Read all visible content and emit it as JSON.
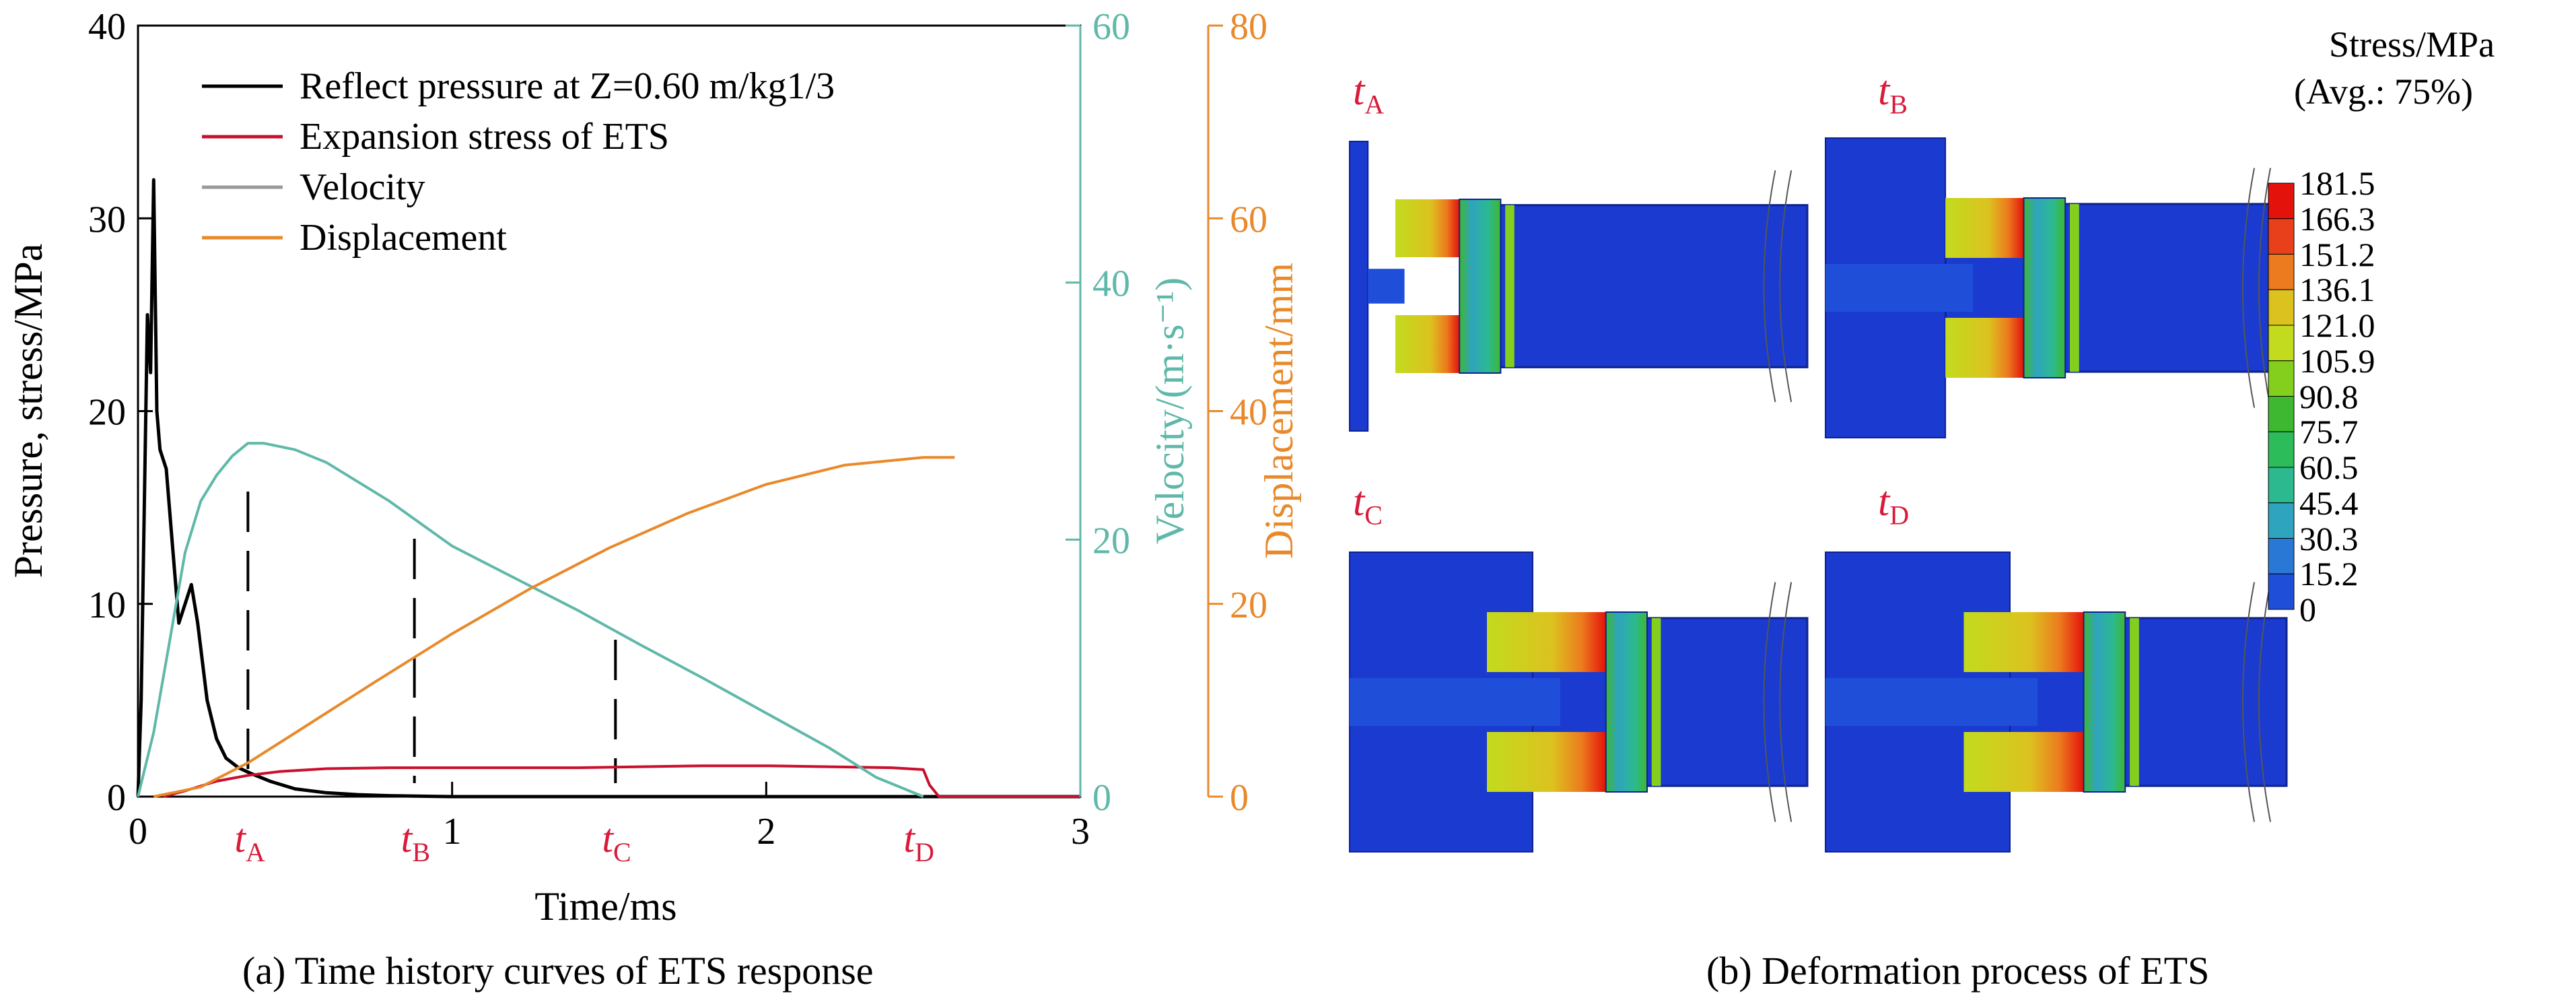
{
  "captions": {
    "a": "(a) Time history curves of ETS response",
    "b": "(b) Deformation process of ETS"
  },
  "chart_data": {
    "type": "line",
    "xlabel": "Time/ms",
    "ylabel_left": "Pressure, stress/MPa",
    "ylabel_right1": "Velocity/(m·s⁻¹)",
    "ylabel_right2": "Displacement/mm",
    "xlim": [
      0,
      3
    ],
    "ylim_left": [
      0,
      40
    ],
    "ylim_right1": [
      0,
      60
    ],
    "ylim_right2": [
      0,
      80
    ],
    "x_ticks": [
      "0",
      "1",
      "2",
      "3"
    ],
    "y_ticks_left": [
      "0",
      "10",
      "20",
      "30",
      "40"
    ],
    "y_ticks_right1": [
      "0",
      "20",
      "40",
      "60"
    ],
    "y_ticks_right2": [
      "0",
      "20",
      "40",
      "60",
      "80"
    ],
    "legend_position": "top-left",
    "legend": {
      "pressure": "Reflect pressure at Z=0.60 m/kg1/3",
      "stress": "Expansion stress of ETS",
      "velocity": "Velocity",
      "displacement": "Displacement"
    },
    "markers": [
      {
        "label": "A",
        "x": 0.35
      },
      {
        "label": "B",
        "x": 0.88
      },
      {
        "label": "C",
        "x": 1.52
      },
      {
        "label": "D",
        "x": 2.48
      }
    ],
    "series": [
      {
        "name": "Reflect pressure at Z=0.60 m/kg1/3",
        "color": "#000000",
        "axis": "left",
        "x": [
          0,
          0.01,
          0.03,
          0.04,
          0.05,
          0.06,
          0.07,
          0.09,
          0.11,
          0.13,
          0.15,
          0.17,
          0.19,
          0.22,
          0.25,
          0.28,
          0.32,
          0.36,
          0.42,
          0.5,
          0.6,
          0.7,
          0.8,
          1.0,
          3.0
        ],
        "y": [
          0,
          5,
          25,
          22,
          32,
          20,
          18,
          17,
          13,
          9,
          10,
          11,
          9,
          5,
          3,
          2,
          1.5,
          1.2,
          0.8,
          0.4,
          0.2,
          0.1,
          0.05,
          0,
          0
        ]
      },
      {
        "name": "Expansion stress of ETS",
        "color": "#c8102e",
        "axis": "left",
        "x": [
          0.08,
          0.15,
          0.25,
          0.35,
          0.45,
          0.6,
          0.8,
          1.0,
          1.2,
          1.4,
          1.6,
          1.8,
          2.0,
          2.2,
          2.4,
          2.5,
          2.52,
          2.55,
          3.0
        ],
        "y": [
          0,
          0.3,
          0.8,
          1.1,
          1.3,
          1.45,
          1.5,
          1.5,
          1.5,
          1.5,
          1.55,
          1.6,
          1.6,
          1.55,
          1.5,
          1.4,
          0.6,
          0,
          0
        ]
      },
      {
        "name": "Velocity",
        "color": "#5fb8a9",
        "axis": "right1",
        "x": [
          0,
          0.05,
          0.1,
          0.15,
          0.2,
          0.25,
          0.3,
          0.35,
          0.4,
          0.5,
          0.6,
          0.8,
          1.0,
          1.2,
          1.4,
          1.6,
          1.8,
          2.0,
          2.2,
          2.35,
          2.5
        ],
        "y": [
          0,
          5,
          12,
          19,
          23,
          25,
          26.5,
          27.5,
          27.5,
          27,
          26,
          23,
          19.5,
          17,
          14.5,
          11.8,
          9.2,
          6.5,
          3.8,
          1.5,
          0
        ]
      },
      {
        "name": "Displacement",
        "color": "#e8892b",
        "axis": "right2",
        "x": [
          0.05,
          0.2,
          0.35,
          0.5,
          0.75,
          1.0,
          1.25,
          1.5,
          1.75,
          2.0,
          2.25,
          2.5,
          2.6
        ],
        "y": [
          0,
          1,
          3.5,
          6.6,
          11.8,
          16.9,
          21.6,
          25.8,
          29.4,
          32.4,
          34.4,
          35.2,
          35.2
        ]
      }
    ]
  },
  "deformation": {
    "labels": [
      "A",
      "B",
      "C",
      "D"
    ],
    "legend_title_1": "Stress/MPa",
    "legend_title_2": "(Avg.: 75%)",
    "levels": [
      "181.5",
      "166.3",
      "151.2",
      "136.1",
      "121.0",
      "105.9",
      "90.8",
      "75.7",
      "60.5",
      "45.4",
      "30.3",
      "15.2",
      "0"
    ],
    "level_colors": [
      "#e3120b",
      "#e8401a",
      "#ec7a1e",
      "#dcc21f",
      "#c2db1e",
      "#84cf1e",
      "#3eb830",
      "#2cbc5a",
      "#2cb98f",
      "#2fa4bf",
      "#2a78d6",
      "#1f4fd9",
      "#1a3ad0"
    ]
  }
}
